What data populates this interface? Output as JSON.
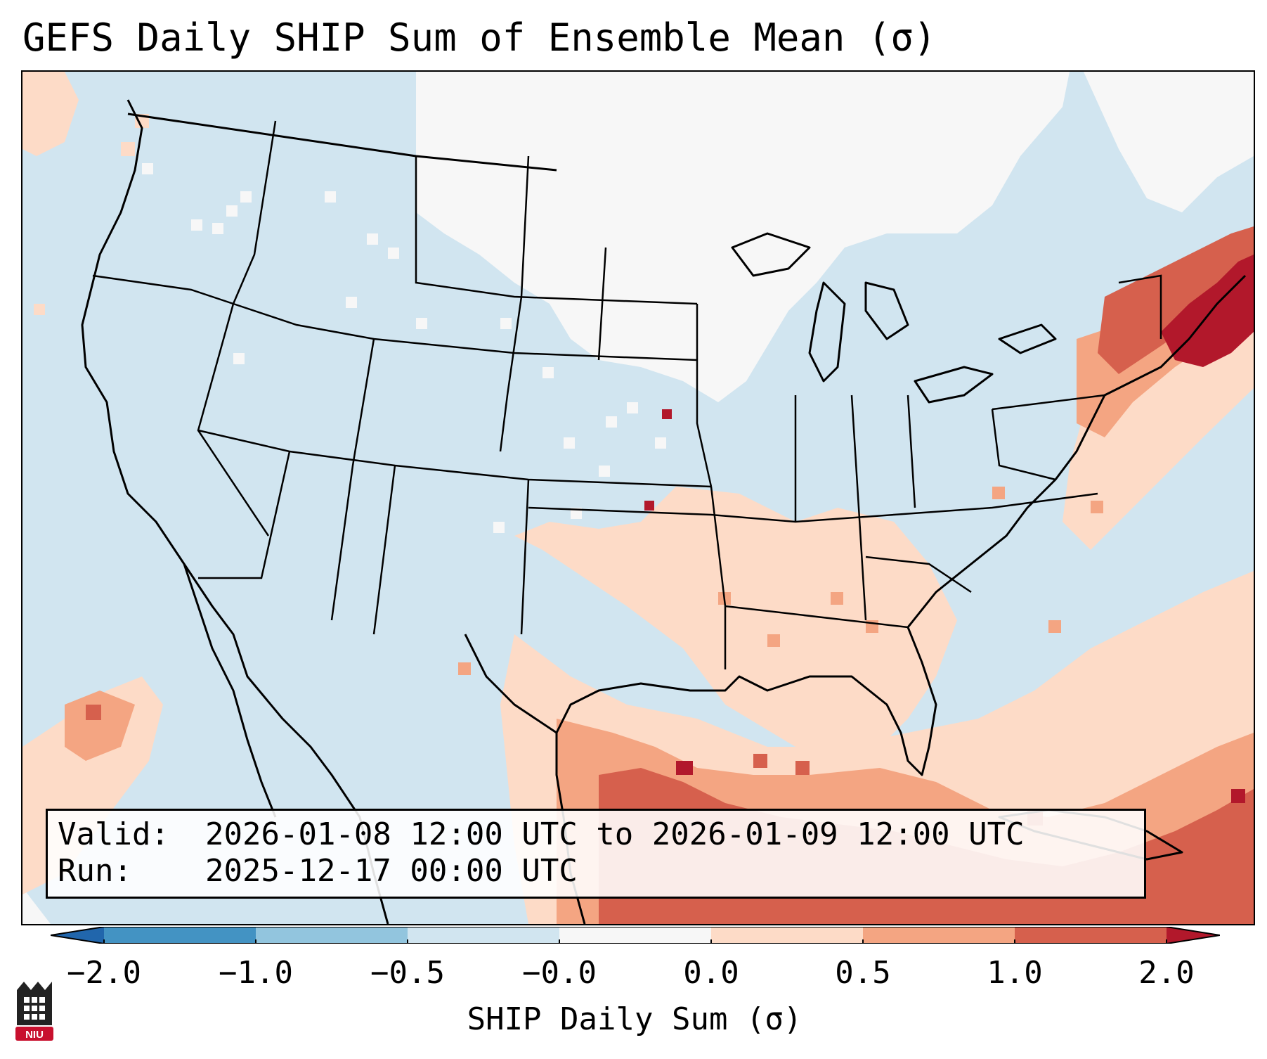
{
  "title": "GEFS Daily SHIP Sum of Ensemble Mean (σ)",
  "info": {
    "valid_label": "Valid:",
    "valid_value": "2026-01-08 12:00 UTC to 2026-01-09 12:00 UTC",
    "run_label": "Run:",
    "run_value": "2025-12-17 00:00 UTC"
  },
  "colorbar": {
    "label": "SHIP Daily Sum (σ)",
    "ticks": [
      "−2.0",
      "−1.0",
      "−0.5",
      "−0.0",
      "0.0",
      "0.5",
      "1.0",
      "2.0"
    ],
    "bins": [
      {
        "range": "< -2.0",
        "color": "#2166ac"
      },
      {
        "range": "-2.0 to -1.0",
        "color": "#4393c3"
      },
      {
        "range": "-1.0 to -0.5",
        "color": "#92c5de"
      },
      {
        "range": "-0.5 to -0.0",
        "color": "#d1e5f0"
      },
      {
        "range": "-0.0 to 0.0",
        "color": "#f7f7f7"
      },
      {
        "range": "0.0 to 0.5",
        "color": "#fddbc7"
      },
      {
        "range": "0.5 to 1.0",
        "color": "#f4a582"
      },
      {
        "range": "1.0 to 2.0",
        "color": "#d6604d"
      },
      {
        "range": "> 2.0",
        "color": "#b2182b"
      }
    ]
  },
  "logo": {
    "text": "NIU"
  }
}
